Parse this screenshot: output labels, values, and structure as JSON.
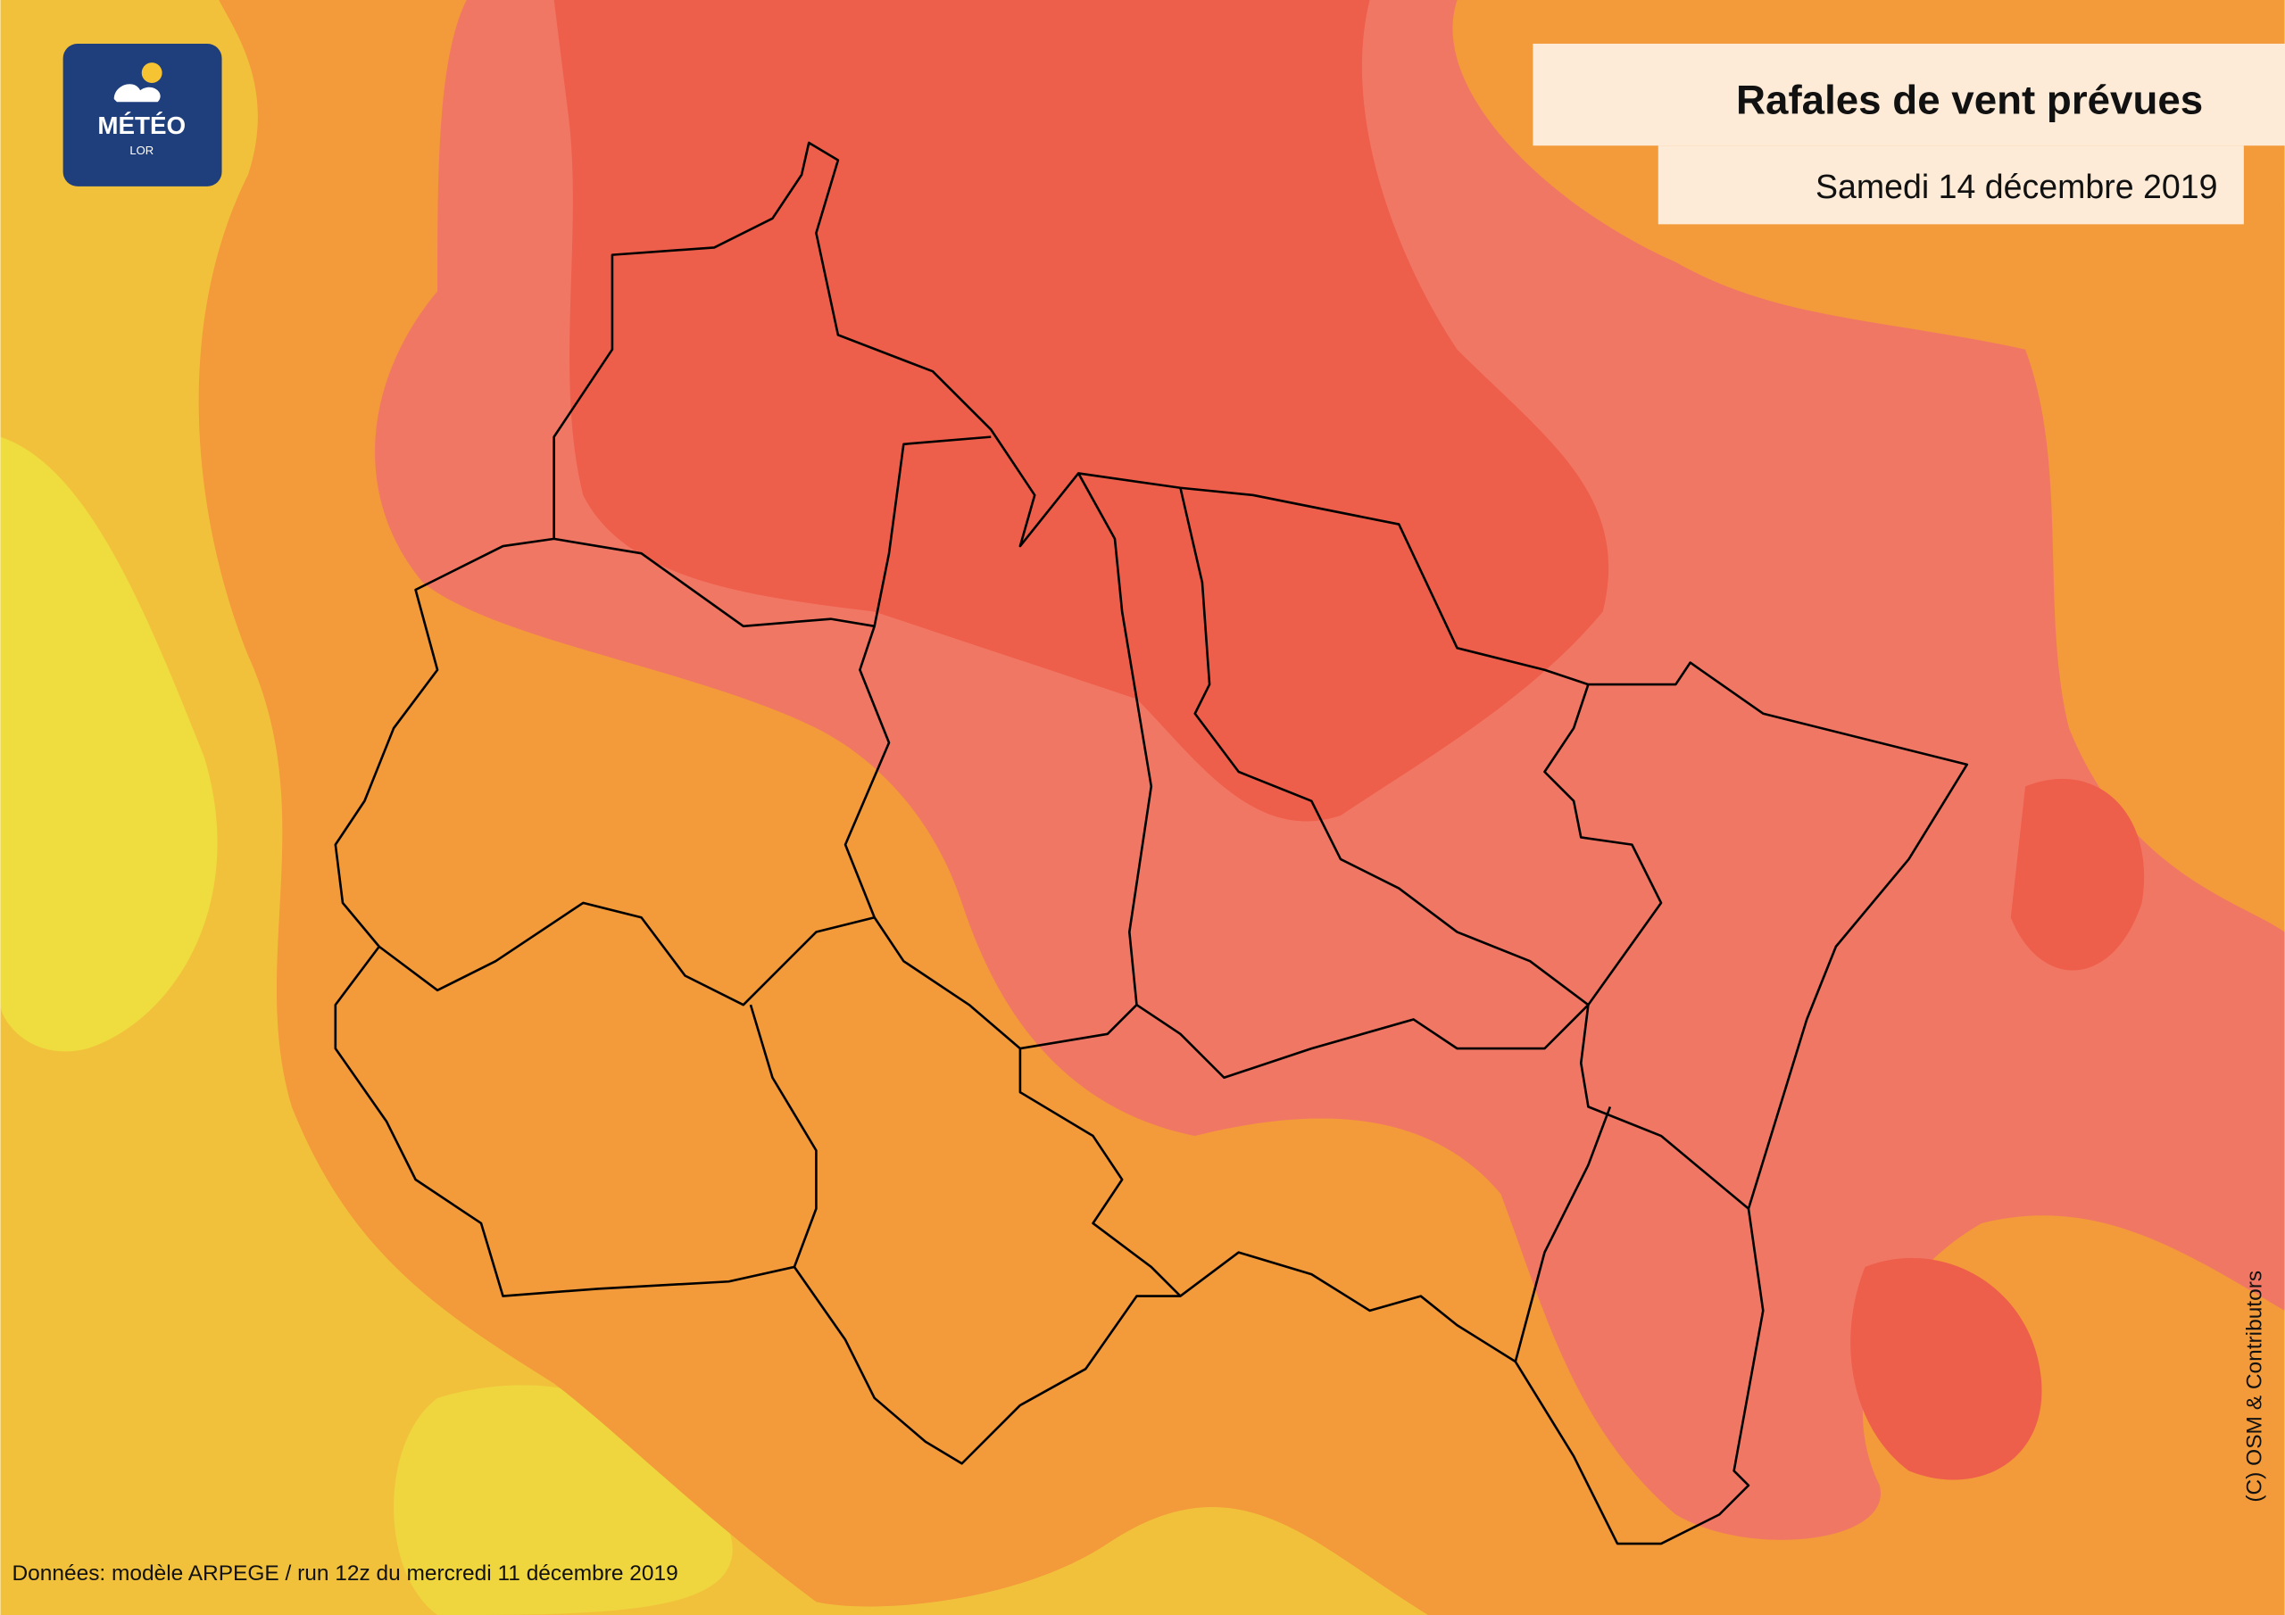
{
  "logo": {
    "title": "MÉTÉO",
    "subtitle": "LOR"
  },
  "header": {
    "title": "Rafales de vent prévues",
    "date": "Samedi 14 décembre 2019"
  },
  "footer": {
    "source": "Données: modèle ARPEGE / run 12z du mercredi 11 décembre 2019",
    "credit": "(C) OSM & Contributors"
  }
}
